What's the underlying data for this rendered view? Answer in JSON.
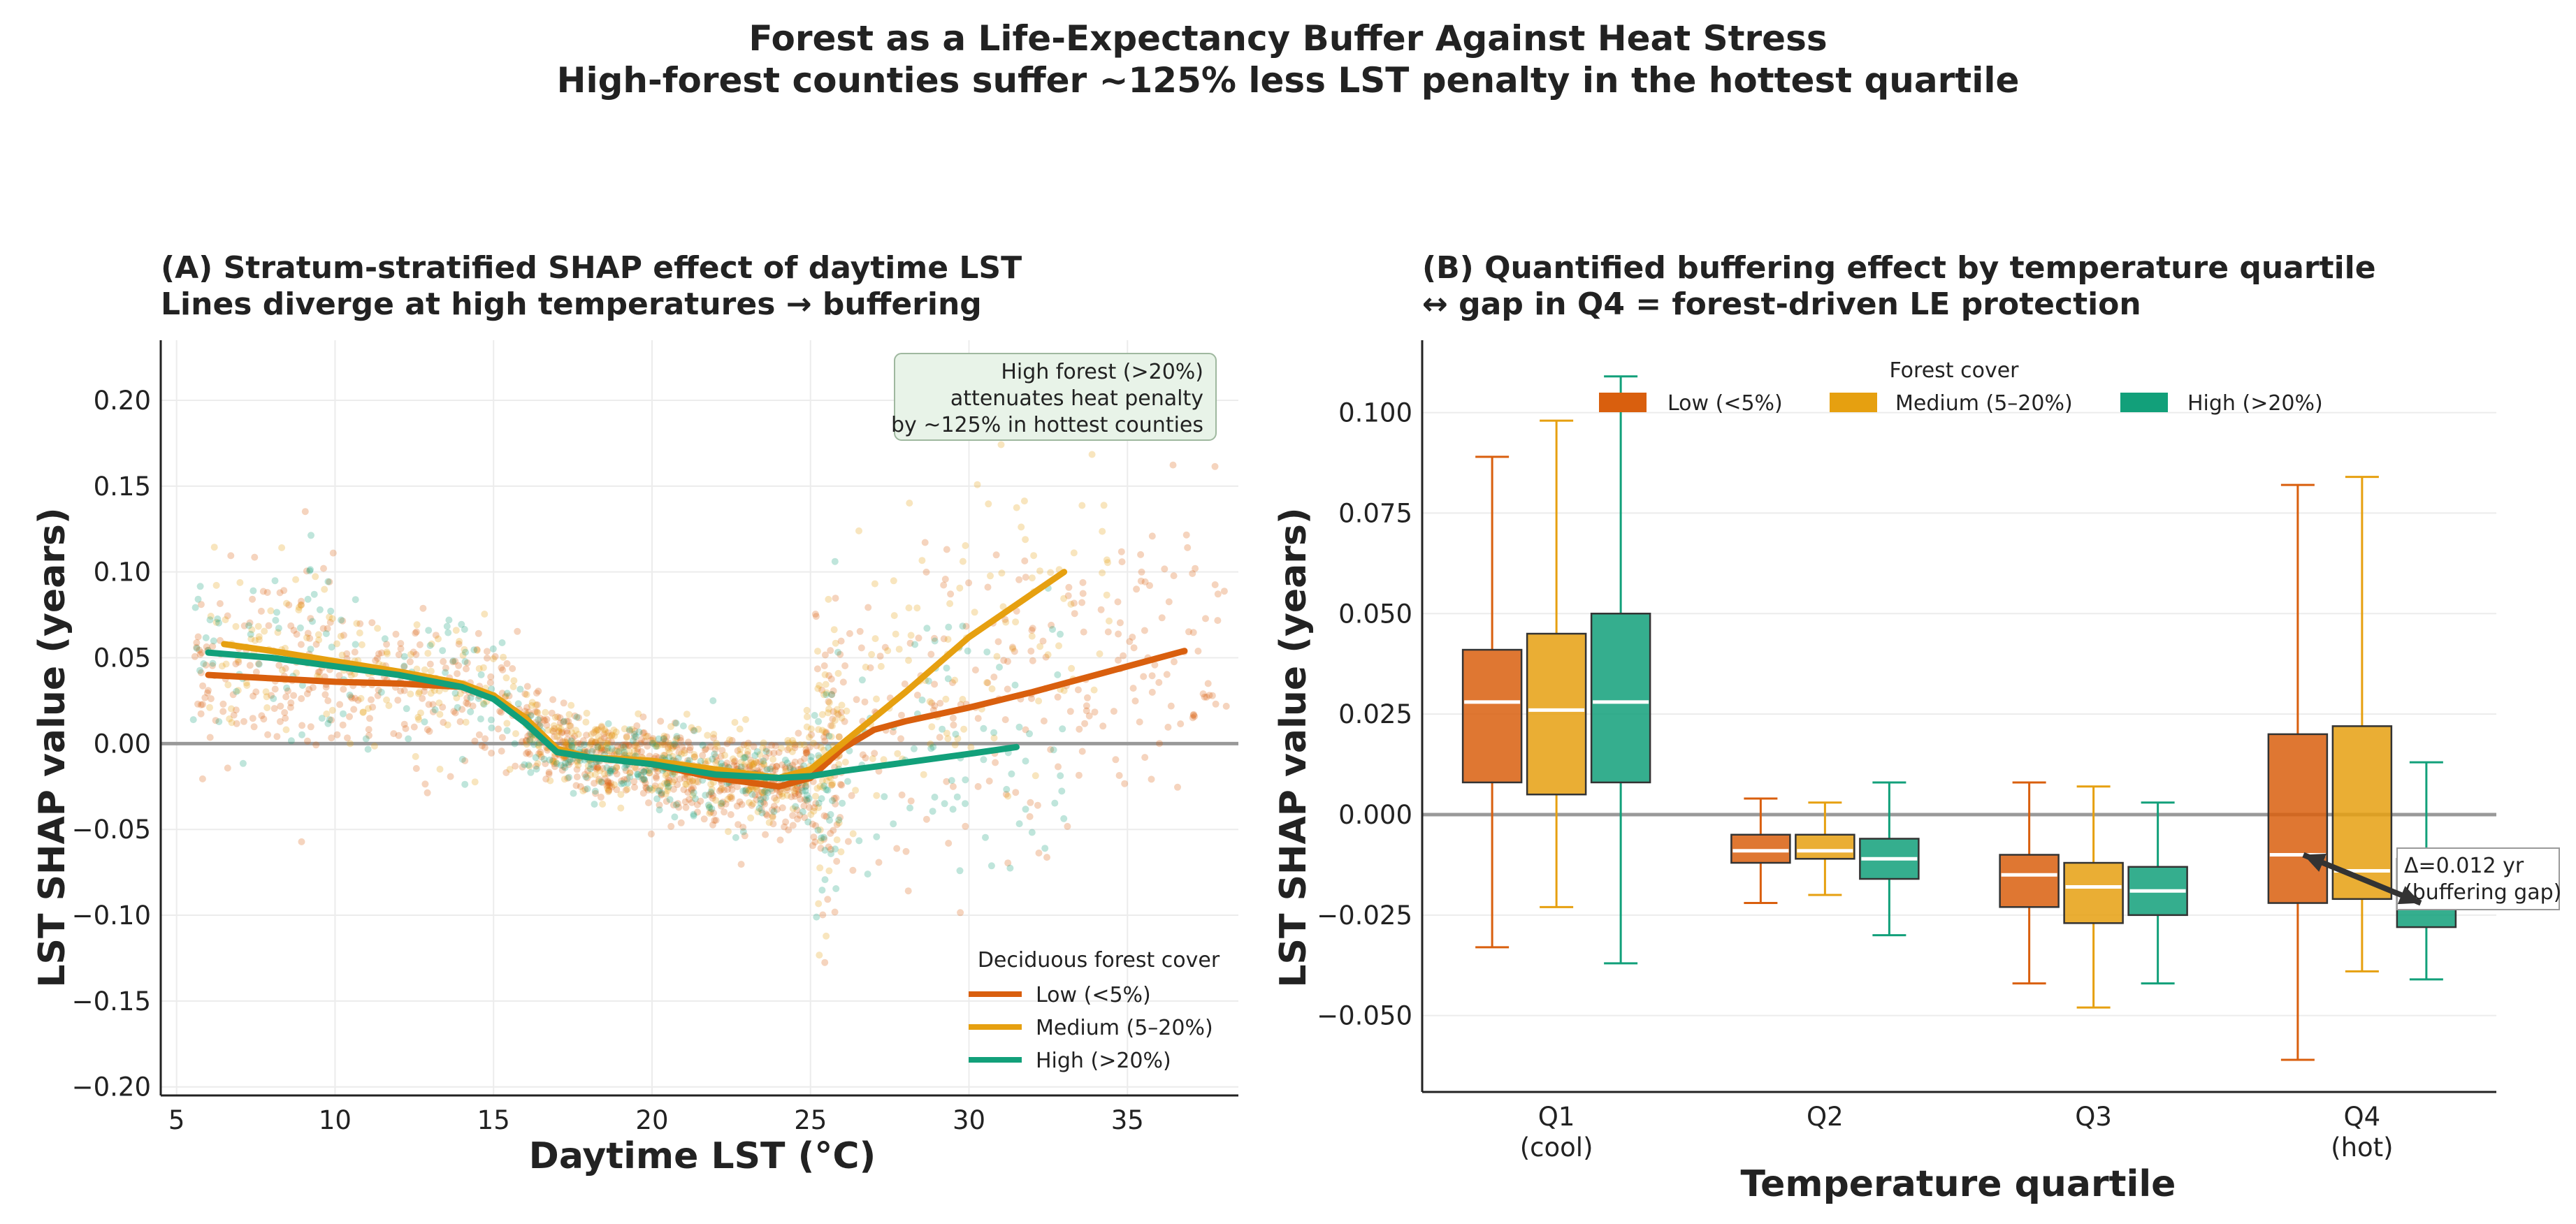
{
  "figure": {
    "title_line1": "Forest as a Life-Expectancy Buffer Against Heat Stress",
    "title_line2": "High-forest counties suffer ~125% less LST penalty in the hottest quartile"
  },
  "colors": {
    "low": "#d95f0e",
    "medium": "#e6a010",
    "high": "#12a07a",
    "zero_line": "#999999",
    "grid": "#ececec"
  },
  "chart_data": [
    {
      "panel": "A",
      "type": "scatter",
      "title_line1": "(A)  Stratum-stratified SHAP effect of daytime LST",
      "title_line2": "Lines diverge at high temperatures → buffering",
      "xlabel": "Daytime LST (°C)",
      "ylabel": "LST SHAP value  (years)",
      "xlim": [
        4.5,
        38.5
      ],
      "ylim": [
        -0.205,
        0.235
      ],
      "xticks": [
        5,
        10,
        15,
        20,
        25,
        30,
        35
      ],
      "yticks": [
        -0.2,
        -0.15,
        -0.1,
        -0.05,
        0.0,
        0.05,
        0.1,
        0.15,
        0.2
      ],
      "ytick_labels": [
        "−0.20",
        "−0.15",
        "−0.10",
        "−0.05",
        "0.00",
        "0.05",
        "0.10",
        "0.15",
        "0.20"
      ],
      "grid": true,
      "reference_line_y": 0.0,
      "legend": {
        "title": "Deciduous forest cover",
        "placement": "lower-right",
        "entries": [
          "Low (<5%)",
          "Medium (5–20%)",
          "High (>20%)"
        ]
      },
      "annotation": {
        "lines": [
          "High forest (>20%)",
          "attenuates heat penalty",
          "by ~125% in hottest counties"
        ],
        "placement": "upper-right"
      },
      "series": [
        {
          "name": "Low (<5%)",
          "color_key": "low",
          "x": [
            6,
            8,
            10,
            12,
            14,
            15,
            16,
            17,
            18,
            20,
            22,
            24,
            25,
            26,
            27,
            28,
            30,
            32,
            34,
            36.8
          ],
          "y": [
            0.04,
            0.038,
            0.036,
            0.035,
            0.033,
            0.028,
            0.015,
            -0.003,
            -0.008,
            -0.012,
            -0.02,
            -0.025,
            -0.02,
            -0.003,
            0.008,
            0.013,
            0.021,
            0.03,
            0.04,
            0.054
          ]
        },
        {
          "name": "Medium (5–20%)",
          "color_key": "medium",
          "x": [
            6.5,
            8,
            10,
            12,
            14,
            15,
            16,
            17,
            18,
            20,
            22,
            24,
            25,
            26,
            28,
            30,
            33
          ],
          "y": [
            0.058,
            0.054,
            0.048,
            0.042,
            0.035,
            0.028,
            0.015,
            -0.003,
            -0.008,
            -0.01,
            -0.015,
            -0.02,
            -0.015,
            0.0,
            0.03,
            0.062,
            0.1
          ]
        },
        {
          "name": "High (>20%)",
          "color_key": "high",
          "x": [
            6,
            8,
            10,
            12,
            14,
            15,
            16,
            17,
            18,
            20,
            22,
            24,
            25,
            26,
            28,
            30,
            31.5
          ],
          "y": [
            0.053,
            0.05,
            0.045,
            0.04,
            0.033,
            0.026,
            0.012,
            -0.005,
            -0.008,
            -0.012,
            -0.018,
            -0.02,
            -0.019,
            -0.016,
            -0.011,
            -0.006,
            -0.002
          ]
        }
      ]
    },
    {
      "panel": "B",
      "type": "box",
      "title_line1": "(B)  Quantified buffering effect by temperature quartile",
      "title_line2": "↔ gap in Q4 = forest-driven LE protection",
      "xlabel": "Temperature quartile",
      "ylabel": "LST SHAP value  (years)",
      "ylim": [
        -0.069,
        0.118
      ],
      "yticks": [
        -0.05,
        -0.025,
        0.0,
        0.025,
        0.05,
        0.075,
        0.1
      ],
      "ytick_labels": [
        "−0.050",
        "−0.025",
        "0.000",
        "0.025",
        "0.050",
        "0.075",
        "0.100"
      ],
      "grid": true,
      "reference_line_y": 0.0,
      "categories": [
        "Q1\n(cool)",
        "Q2",
        "Q3",
        "Q4\n(hot)"
      ],
      "legend": {
        "title": "Forest cover",
        "placement": "top-center",
        "entries": [
          "Low (<5%)",
          "Medium (5–20%)",
          "High (>20%)"
        ]
      },
      "annotation": {
        "lines": [
          "Δ=0.012 yr",
          "(buffering gap)"
        ],
        "category": "Q4"
      },
      "series": [
        {
          "name": "Low (<5%)",
          "color_key": "low",
          "boxes": [
            {
              "whislo": -0.033,
              "q1": 0.008,
              "med": 0.028,
              "q3": 0.041,
              "whishi": 0.089
            },
            {
              "whislo": -0.022,
              "q1": -0.012,
              "med": -0.009,
              "q3": -0.005,
              "whishi": 0.004
            },
            {
              "whislo": -0.042,
              "q1": -0.023,
              "med": -0.015,
              "q3": -0.01,
              "whishi": 0.008
            },
            {
              "whislo": -0.061,
              "q1": -0.022,
              "med": -0.01,
              "q3": 0.02,
              "whishi": 0.082
            }
          ]
        },
        {
          "name": "Medium (5–20%)",
          "color_key": "medium",
          "boxes": [
            {
              "whislo": -0.023,
              "q1": 0.005,
              "med": 0.026,
              "q3": 0.045,
              "whishi": 0.098
            },
            {
              "whislo": -0.02,
              "q1": -0.011,
              "med": -0.009,
              "q3": -0.005,
              "whishi": 0.003
            },
            {
              "whislo": -0.048,
              "q1": -0.027,
              "med": -0.018,
              "q3": -0.012,
              "whishi": 0.007
            },
            {
              "whislo": -0.039,
              "q1": -0.021,
              "med": -0.014,
              "q3": 0.022,
              "whishi": 0.084
            }
          ]
        },
        {
          "name": "High (>20%)",
          "color_key": "high",
          "boxes": [
            {
              "whislo": -0.037,
              "q1": 0.008,
              "med": 0.028,
              "q3": 0.05,
              "whishi": 0.109
            },
            {
              "whislo": -0.03,
              "q1": -0.016,
              "med": -0.011,
              "q3": -0.006,
              "whishi": 0.008
            },
            {
              "whislo": -0.042,
              "q1": -0.025,
              "med": -0.019,
              "q3": -0.013,
              "whishi": 0.003
            },
            {
              "whislo": -0.041,
              "q1": -0.028,
              "med": -0.022,
              "q3": -0.011,
              "whishi": 0.013
            }
          ]
        }
      ]
    }
  ]
}
